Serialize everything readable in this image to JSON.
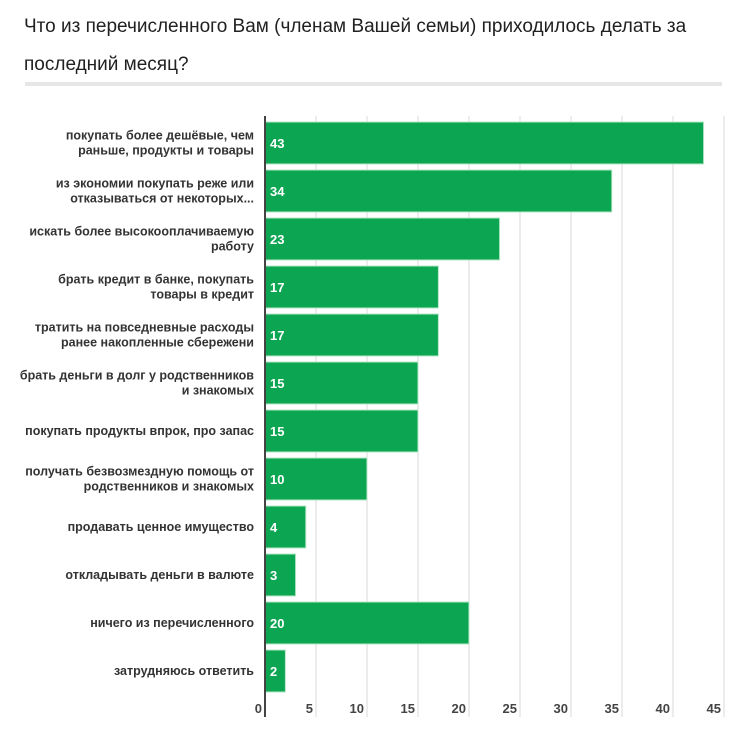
{
  "title": "Что из перечисленного Вам (членам Вашей семьи) приходилось делать за последний месяц?",
  "chart_data": {
    "type": "bar",
    "orientation": "horizontal",
    "title": "Что из перечисленного Вам (членам Вашей семьи) приходилось делать за последний месяц?",
    "categories": [
      [
        "покупать более дешёвые, чем",
        "раньше, продукты и товары"
      ],
      [
        "из экономии покупать реже или",
        "отказываться от некоторых..."
      ],
      [
        "искать более высокооплачиваемую",
        "работу"
      ],
      [
        "брать кредит в банке, покупать",
        "товары в кредит"
      ],
      [
        "тратить на повседневные расходы",
        "ранее накопленные сбережени"
      ],
      [
        "брать деньги в долг у родственников",
        "и знакомых"
      ],
      [
        "покупать продукты впрок, про запас"
      ],
      [
        "получать безвозмездную помощь от",
        "родственников и знакомых"
      ],
      [
        "продавать ценное имущество"
      ],
      [
        "откладывать деньги в валюте"
      ],
      [
        "ничего из перечисленного"
      ],
      [
        "затрудняюсь ответить"
      ]
    ],
    "values": [
      43,
      34,
      23,
      17,
      17,
      15,
      15,
      10,
      4,
      3,
      20,
      2
    ],
    "xlim": [
      0,
      45
    ],
    "xticks": [
      0,
      5,
      10,
      15,
      20,
      25,
      30,
      35,
      40,
      45
    ],
    "bar_color": "#0ca552",
    "grid": true
  }
}
